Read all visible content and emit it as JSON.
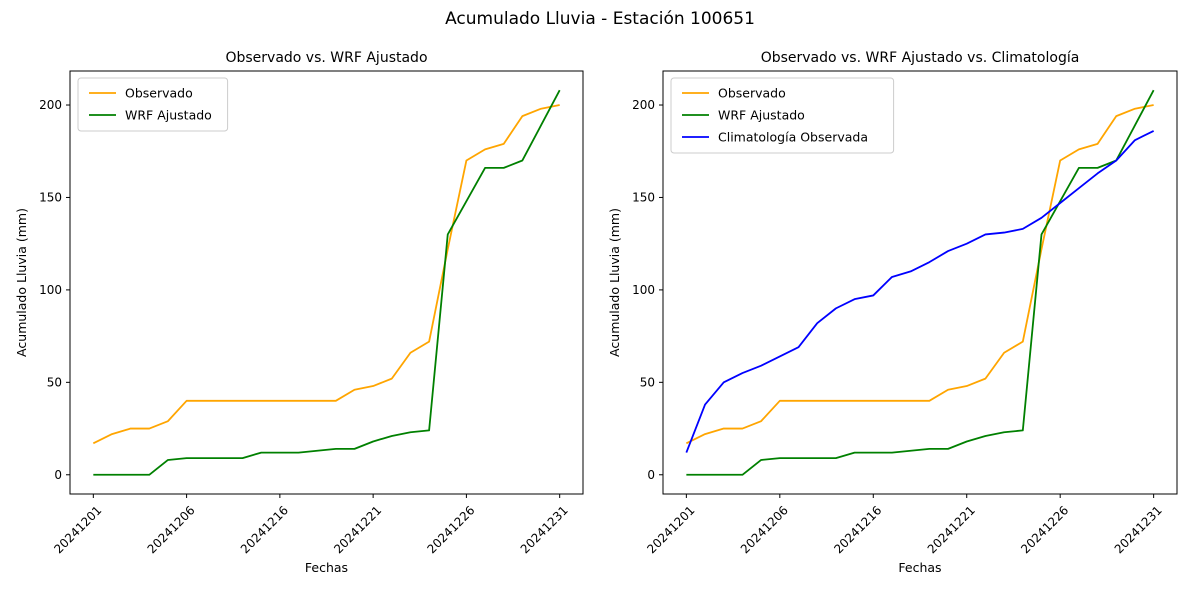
{
  "figure": {
    "suptitle": "Acumulado Lluvia - Estación 100651",
    "background": "#ffffff",
    "axis_color": "#000000",
    "legend_border_color": "#cccccc"
  },
  "chart_data": [
    {
      "type": "line",
      "title": "Observado vs. WRF Ajustado",
      "xlabel": "Fechas",
      "ylabel": "Acumulado Lluvia (mm)",
      "x": [
        "20241201",
        "20241202",
        "20241203",
        "20241204",
        "20241205",
        "20241206",
        "20241207",
        "20241208",
        "20241209",
        "20241210",
        "20241216",
        "20241217",
        "20241218",
        "20241219",
        "20241220",
        "20241221",
        "20241222",
        "20241223",
        "20241224",
        "20241225",
        "20241226",
        "20241227",
        "20241228",
        "20241229",
        "20241230",
        "20241231"
      ],
      "xtick_indices": [
        0,
        5,
        10,
        15,
        20,
        25
      ],
      "xtick_labels": [
        "20241201",
        "20241206",
        "20241216",
        "20241221",
        "20241226",
        "20241231"
      ],
      "xtick_rotation": 45,
      "yticks": [
        0,
        50,
        100,
        150,
        200
      ],
      "xlim": [
        -1.25,
        26.25
      ],
      "ylim": [
        -10.4,
        218.4
      ],
      "grid": false,
      "legend_position": "upper-left",
      "series": [
        {
          "name": "Observado",
          "color": "#FFA500",
          "values": [
            17,
            22,
            25,
            25,
            29,
            40,
            40,
            40,
            40,
            40,
            40,
            40,
            40,
            40,
            46,
            48,
            52,
            66,
            72,
            122,
            170,
            176,
            179,
            194,
            198,
            200
          ]
        },
        {
          "name": "WRF Ajustado",
          "color": "#008000",
          "values": [
            0,
            0,
            0,
            0,
            8,
            9,
            9,
            9,
            9,
            12,
            12,
            12,
            13,
            14,
            14,
            18,
            21,
            23,
            24,
            130,
            148,
            166,
            166,
            170,
            189,
            208
          ]
        }
      ]
    },
    {
      "type": "line",
      "title": "Observado vs. WRF Ajustado vs. Climatología",
      "xlabel": "Fechas",
      "ylabel": "Acumulado Lluvia (mm)",
      "x": [
        "20241201",
        "20241202",
        "20241203",
        "20241204",
        "20241205",
        "20241206",
        "20241207",
        "20241208",
        "20241209",
        "20241210",
        "20241216",
        "20241217",
        "20241218",
        "20241219",
        "20241220",
        "20241221",
        "20241222",
        "20241223",
        "20241224",
        "20241225",
        "20241226",
        "20241227",
        "20241228",
        "20241229",
        "20241230",
        "20241231"
      ],
      "xtick_indices": [
        0,
        5,
        10,
        15,
        20,
        25
      ],
      "xtick_labels": [
        "20241201",
        "20241206",
        "20241216",
        "20241221",
        "20241226",
        "20241231"
      ],
      "xtick_rotation": 45,
      "yticks": [
        0,
        50,
        100,
        150,
        200
      ],
      "xlim": [
        -1.25,
        26.25
      ],
      "ylim": [
        -10.4,
        218.4
      ],
      "grid": false,
      "legend_position": "upper-left",
      "series": [
        {
          "name": "Observado",
          "color": "#FFA500",
          "values": [
            17,
            22,
            25,
            25,
            29,
            40,
            40,
            40,
            40,
            40,
            40,
            40,
            40,
            40,
            46,
            48,
            52,
            66,
            72,
            122,
            170,
            176,
            179,
            194,
            198,
            200
          ]
        },
        {
          "name": "WRF Ajustado",
          "color": "#008000",
          "values": [
            0,
            0,
            0,
            0,
            8,
            9,
            9,
            9,
            9,
            12,
            12,
            12,
            13,
            14,
            14,
            18,
            21,
            23,
            24,
            130,
            148,
            166,
            166,
            170,
            189,
            208
          ]
        },
        {
          "name": "Climatología Observada",
          "color": "#0000FF",
          "values": [
            12,
            38,
            50,
            55,
            59,
            64,
            69,
            82,
            90,
            95,
            97,
            107,
            110,
            115,
            121,
            125,
            130,
            131,
            133,
            139,
            147,
            155,
            163,
            170,
            181,
            186
          ]
        }
      ]
    }
  ]
}
